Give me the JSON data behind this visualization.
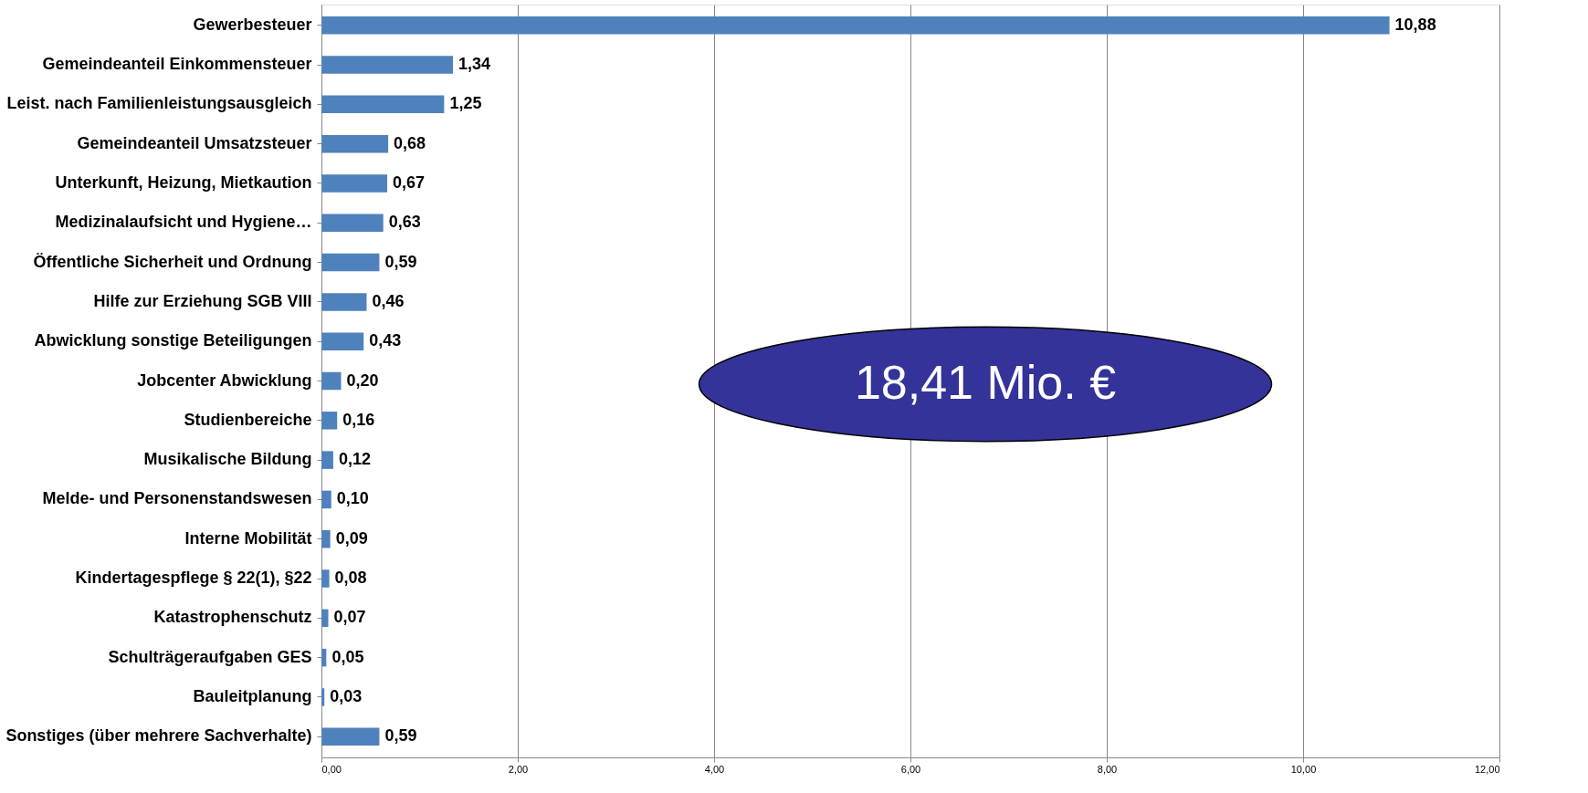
{
  "chart_data": {
    "type": "bar",
    "orientation": "horizontal",
    "categories": [
      "Gewerbesteuer",
      "Gemeindeanteil Einkommensteuer",
      "Leist. nach Familienleistungsausgleich",
      "Gemeindeanteil  Umsatzsteuer",
      "Unterkunft, Heizung, Mietkaution",
      "Medizinalaufsicht und Hygiene…",
      "Öffentliche Sicherheit und Ordnung",
      "Hilfe zur Erziehung  SGB VIII",
      "Abwicklung sonstige Beteiligungen",
      "Jobcenter Abwicklung",
      "Studienbereiche",
      "Musikalische Bildung",
      "Melde- und Personenstandswesen",
      "Interne Mobilität",
      "Kindertagespflege § 22(1), §22",
      "Katastrophenschutz",
      "Schulträgeraufgaben GES",
      "Bauleitplanung",
      "Sonstiges (über mehrere Sachverhalte)"
    ],
    "values": [
      10.88,
      1.34,
      1.25,
      0.68,
      0.67,
      0.63,
      0.59,
      0.46,
      0.43,
      0.2,
      0.16,
      0.12,
      0.1,
      0.09,
      0.08,
      0.07,
      0.05,
      0.03,
      0.59
    ],
    "value_labels": [
      "10,88",
      "1,34",
      "1,25",
      "0,68",
      "0,67",
      "0,63",
      "0,59",
      "0,46",
      "0,43",
      "0,20",
      "0,16",
      "0,12",
      "0,10",
      "0,09",
      "0,08",
      "0,07",
      "0,05",
      "0,03",
      "0,59"
    ],
    "color": "#4f81bd",
    "xlim": [
      0,
      12
    ],
    "xticks": [
      {
        "value": 0,
        "label": "0,00"
      },
      {
        "value": 2,
        "label": "2,00"
      },
      {
        "value": 4,
        "label": "4,00"
      },
      {
        "value": 6,
        "label": "6,00"
      },
      {
        "value": 8,
        "label": "8,00"
      },
      {
        "value": 10,
        "label": "10,00"
      },
      {
        "value": 12,
        "label": "12,00"
      }
    ],
    "grid": "x",
    "annotations": [
      "18,41 Mio. €"
    ]
  }
}
